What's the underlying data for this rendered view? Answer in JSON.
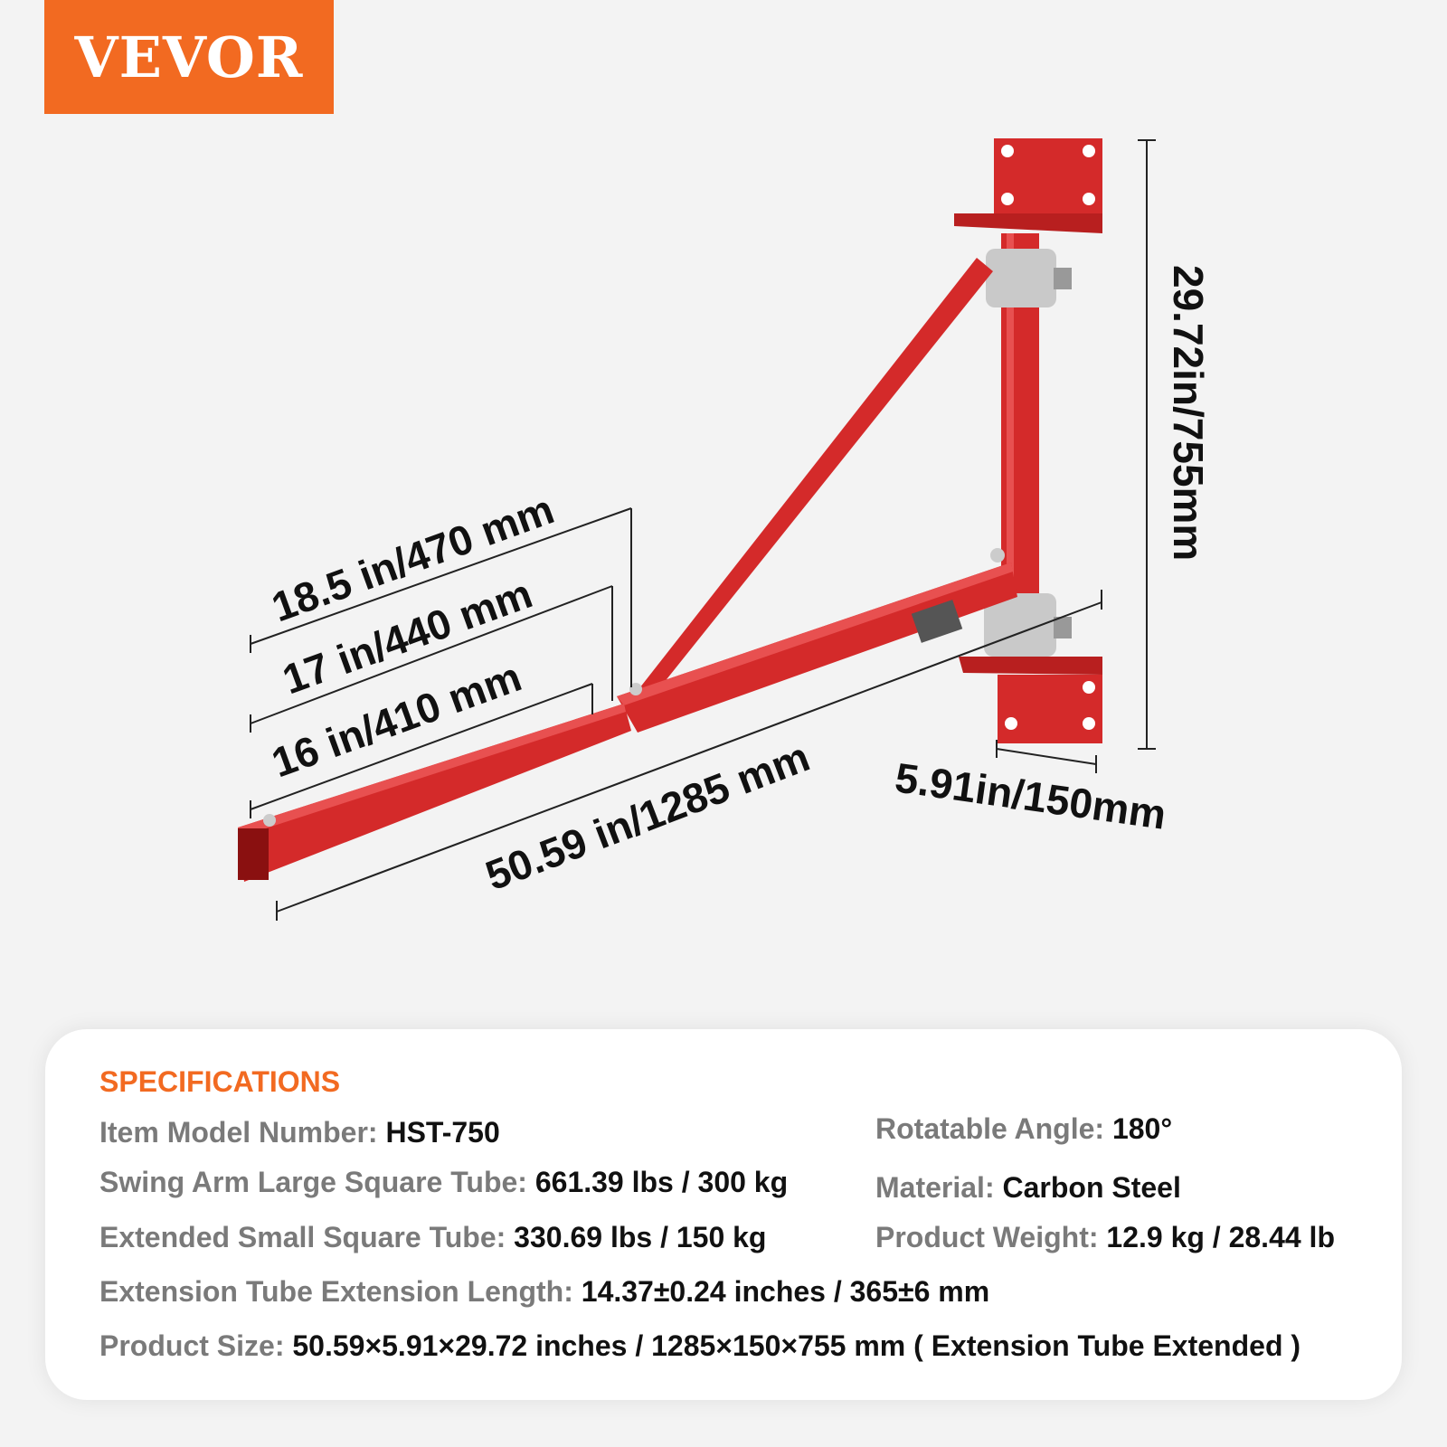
{
  "brand": {
    "logo_text": "VEVOR",
    "color": "#f26a21"
  },
  "dimensions": {
    "height": "29.72in/755mm",
    "overall_length": "50.59 in/1285 mm",
    "plate_width": "5.91in/150mm",
    "arm_470": "18.5 in/470 mm",
    "arm_440": "17 in/440 mm",
    "arm_410": "16 in/410 mm"
  },
  "product_color": "#d42a2a",
  "specs": {
    "title": "SPECIFICATIONS",
    "items": [
      {
        "label": "Item Model Number:",
        "value": "HST-750"
      },
      {
        "label": "Swing Arm Large Square Tube:",
        "value": "661.39 lbs / 300 kg"
      },
      {
        "label": "Extended Small Square Tube:",
        "value": "330.69 lbs / 150 kg"
      },
      {
        "label": "Rotatable Angle:",
        "value": "180°"
      },
      {
        "label": "Material:",
        "value": "Carbon Steel"
      },
      {
        "label": "Product Weight:",
        "value": "12.9 kg / 28.44 lb"
      },
      {
        "label": "Extension Tube Extension Length:",
        "value": "14.37±0.24 inches / 365±6 mm"
      },
      {
        "label": "Product Size:",
        "value": "50.59×5.91×29.72 inches / 1285×150×755 mm ( Extension Tube Extended )"
      }
    ]
  }
}
